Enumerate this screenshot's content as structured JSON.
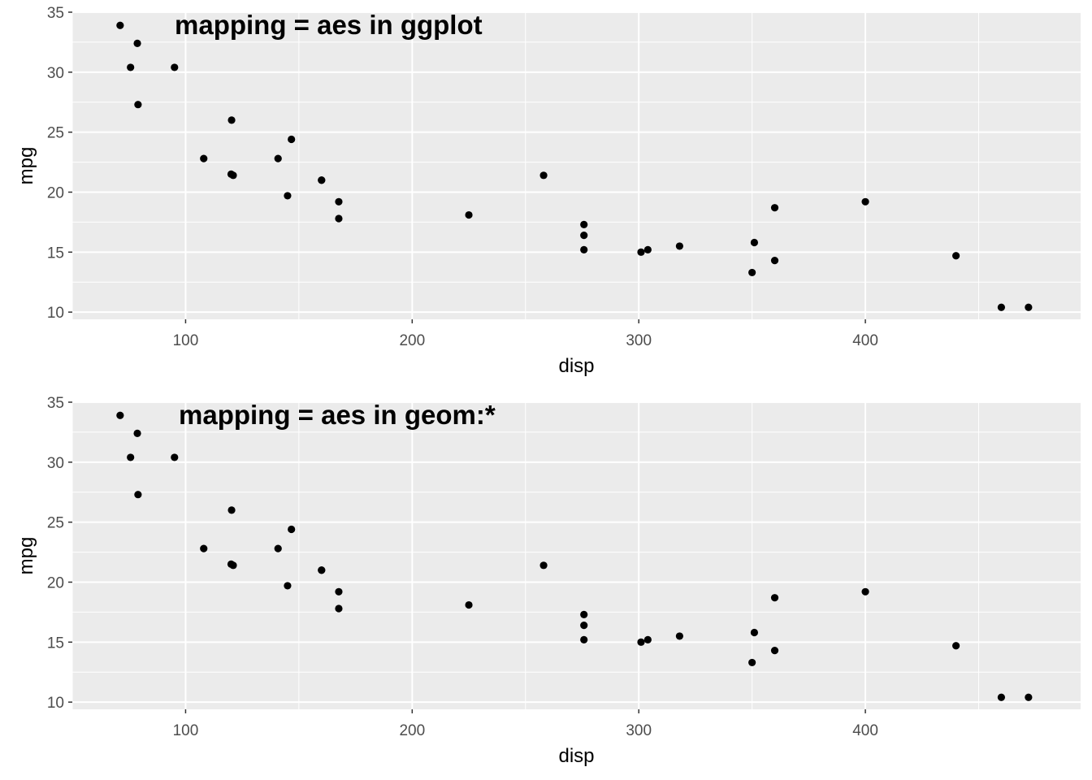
{
  "chart_data": [
    {
      "type": "scatter",
      "title": "",
      "annotation": "mapping = aes in ggplot",
      "xlabel": "disp",
      "ylabel": "mpg",
      "xlim": [
        50,
        495
      ],
      "ylim": [
        9.4,
        35
      ],
      "x_ticks": [
        100,
        200,
        300,
        400
      ],
      "y_ticks": [
        10,
        15,
        20,
        25,
        30,
        35
      ],
      "grid": true,
      "background": "#ebebeb",
      "grid_color": "#ffffff",
      "point_color": "#000000",
      "series": [
        {
          "x": [
            160,
            160,
            108,
            258,
            360,
            225,
            360,
            146.7,
            140.8,
            167.6,
            167.6,
            275.8,
            275.8,
            275.8,
            472,
            460,
            440,
            78.7,
            75.7,
            71.1,
            120.1,
            318,
            304,
            350,
            400,
            79,
            120.3,
            95.1,
            351,
            145,
            301,
            121
          ],
          "y": [
            21,
            21,
            22.8,
            21.4,
            18.7,
            18.1,
            14.3,
            24.4,
            22.8,
            19.2,
            17.8,
            16.4,
            17.3,
            15.2,
            10.4,
            10.4,
            14.7,
            32.4,
            30.4,
            33.9,
            21.5,
            15.5,
            15.2,
            13.3,
            19.2,
            27.3,
            26,
            30.4,
            15.8,
            19.7,
            15,
            21.4
          ]
        }
      ]
    },
    {
      "type": "scatter",
      "title": "",
      "annotation": "mapping = aes in geom:*",
      "xlabel": "disp",
      "ylabel": "mpg",
      "xlim": [
        50,
        495
      ],
      "ylim": [
        9.4,
        35
      ],
      "x_ticks": [
        100,
        200,
        300,
        400
      ],
      "y_ticks": [
        10,
        15,
        20,
        25,
        30,
        35
      ],
      "grid": true,
      "background": "#ebebeb",
      "grid_color": "#ffffff",
      "point_color": "#000000",
      "series": [
        {
          "x": [
            160,
            160,
            108,
            258,
            360,
            225,
            360,
            146.7,
            140.8,
            167.6,
            167.6,
            275.8,
            275.8,
            275.8,
            472,
            460,
            440,
            78.7,
            75.7,
            71.1,
            120.1,
            318,
            304,
            350,
            400,
            79,
            120.3,
            95.1,
            351,
            145,
            301,
            121
          ],
          "y": [
            21,
            21,
            22.8,
            21.4,
            18.7,
            18.1,
            14.3,
            24.4,
            22.8,
            19.2,
            17.8,
            16.4,
            17.3,
            15.2,
            10.4,
            10.4,
            14.7,
            32.4,
            30.4,
            33.9,
            21.5,
            15.5,
            15.2,
            13.3,
            19.2,
            27.3,
            26,
            30.4,
            15.8,
            19.7,
            15,
            21.4
          ]
        }
      ]
    }
  ]
}
